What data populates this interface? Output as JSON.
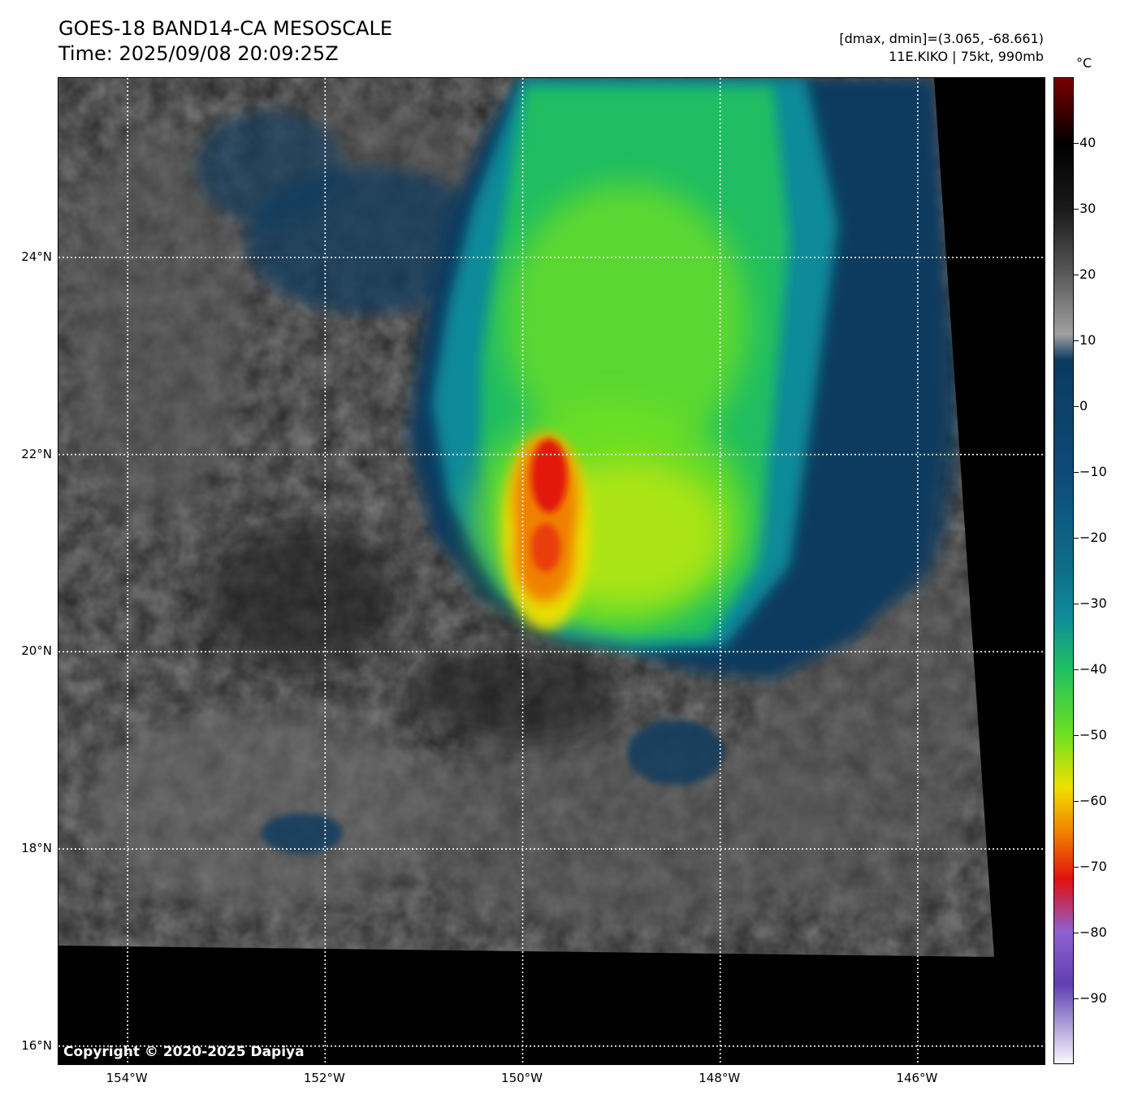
{
  "header": {
    "title_line1": "GOES-18 BAND14-CA MESOSCALE",
    "title_line2": "Time: 2025/09/08 20:09:25Z",
    "info_line1": "[dmax, dmin]=(3.065, -68.661)",
    "info_line2": "11E.KIKO | 75kt, 990mb"
  },
  "map": {
    "lat_labels": [
      {
        "value": 24,
        "label": "24°N"
      },
      {
        "value": 22,
        "label": "22°N"
      },
      {
        "value": 20,
        "label": "20°N"
      },
      {
        "value": 18,
        "label": "18°N"
      },
      {
        "value": 16,
        "label": "16°N"
      }
    ],
    "lon_labels": [
      {
        "value": -154,
        "label": "154°W"
      },
      {
        "value": -152,
        "label": "152°W"
      },
      {
        "value": -150,
        "label": "150°W"
      },
      {
        "value": -148,
        "label": "148°W"
      },
      {
        "value": -146,
        "label": "146°W"
      }
    ],
    "lat_range": [
      15.8,
      25.82
    ],
    "lon_range": [
      -154.7,
      -144.7
    ],
    "gridlines": true,
    "copyright": "Copyright © 2020-2025 Dapiya"
  },
  "colorbar": {
    "unit": "°C",
    "range": [
      -100,
      50
    ],
    "ticks": [
      {
        "value": 40,
        "label": "40"
      },
      {
        "value": 30,
        "label": "30"
      },
      {
        "value": 20,
        "label": "20"
      },
      {
        "value": 10,
        "label": "10"
      },
      {
        "value": 0,
        "label": "0"
      },
      {
        "value": -10,
        "label": "−10"
      },
      {
        "value": -20,
        "label": "−20"
      },
      {
        "value": -30,
        "label": "−30"
      },
      {
        "value": -40,
        "label": "−40"
      },
      {
        "value": -50,
        "label": "−50"
      },
      {
        "value": -60,
        "label": "−60"
      },
      {
        "value": -70,
        "label": "−70"
      },
      {
        "value": -80,
        "label": "−80"
      },
      {
        "value": -90,
        "label": "−90"
      }
    ],
    "colors": {
      "warm_top": "#7a0000",
      "black": "#000000",
      "gray": "#a0a0a0",
      "navy": "#0b3a5e",
      "teal": "#108a9a",
      "green": "#20c060",
      "lime": "#6ee020",
      "yellow": "#f0e000",
      "orange": "#f08000",
      "red": "#e01010",
      "purple": "#9060d0",
      "pale": "#f8f8ff"
    }
  }
}
